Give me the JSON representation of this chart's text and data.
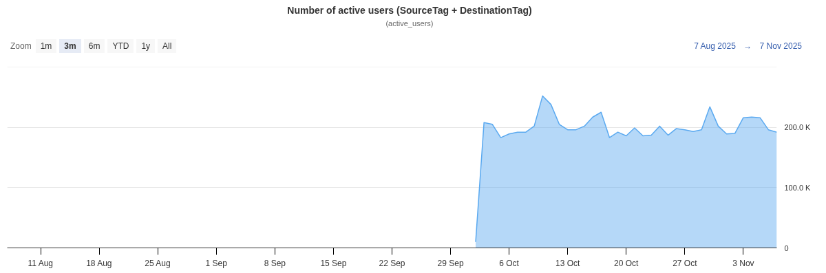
{
  "chart_data": {
    "type": "area",
    "title": "Number of active users (SourceTag + DestinationTag)",
    "subtitle": "(active_users)",
    "annotations": [
      "Zoom",
      "1m",
      "3m",
      "6m",
      "YTD",
      "1y",
      "All",
      "7 Aug 2025",
      "→",
      "7 Nov 2025"
    ],
    "x": [
      "2025-10-02",
      "2025-10-03",
      "2025-10-04",
      "2025-10-05",
      "2025-10-06",
      "2025-10-07",
      "2025-10-08",
      "2025-10-09",
      "2025-10-10",
      "2025-10-11",
      "2025-10-12",
      "2025-10-13",
      "2025-10-14",
      "2025-10-15",
      "2025-10-16",
      "2025-10-17",
      "2025-10-18",
      "2025-10-19",
      "2025-10-20",
      "2025-10-21",
      "2025-10-22",
      "2025-10-23",
      "2025-10-24",
      "2025-10-25",
      "2025-10-26",
      "2025-10-27",
      "2025-10-28",
      "2025-10-29",
      "2025-10-30",
      "2025-10-31",
      "2025-11-01",
      "2025-11-02",
      "2025-11-03",
      "2025-11-04",
      "2025-11-05",
      "2025-11-06",
      "2025-11-07"
    ],
    "series": [
      {
        "color": "#5aa9f0",
        "values": [
          10000,
          208000,
          205000,
          183000,
          189000,
          192000,
          192000,
          202000,
          252000,
          238000,
          205000,
          196000,
          196000,
          202000,
          217000,
          225000,
          183000,
          192000,
          186000,
          199000,
          186000,
          187000,
          202000,
          187000,
          198000,
          196000,
          193000,
          196000,
          234000,
          202000,
          189000,
          190000,
          216000,
          217000,
          216000,
          196000,
          192000
        ]
      }
    ],
    "xlim": [
      "2025-08-07",
      "2025-11-07"
    ],
    "xticks": [
      {
        "value": "2025-08-11",
        "label": "11 Aug"
      },
      {
        "value": "2025-08-18",
        "label": "18 Aug"
      },
      {
        "value": "2025-08-25",
        "label": "25 Aug"
      },
      {
        "value": "2025-09-01",
        "label": "1 Sep"
      },
      {
        "value": "2025-09-08",
        "label": "8 Sep"
      },
      {
        "value": "2025-09-15",
        "label": "15 Sep"
      },
      {
        "value": "2025-09-22",
        "label": "22 Sep"
      },
      {
        "value": "2025-09-29",
        "label": "29 Sep"
      },
      {
        "value": "2025-10-06",
        "label": "6 Oct"
      },
      {
        "value": "2025-10-13",
        "label": "13 Oct"
      },
      {
        "value": "2025-10-20",
        "label": "20 Oct"
      },
      {
        "value": "2025-10-27",
        "label": "27 Oct"
      },
      {
        "value": "2025-11-03",
        "label": "3 Nov"
      }
    ],
    "ylim": [
      0,
      300000
    ],
    "yticks": [
      0,
      {
        "value": 100000,
        "label": "100.0 K"
      },
      {
        "value": 200000,
        "label": "200.0 K"
      },
      {
        "value": 300000,
        "label": null
      }
    ],
    "grid": "y"
  }
}
